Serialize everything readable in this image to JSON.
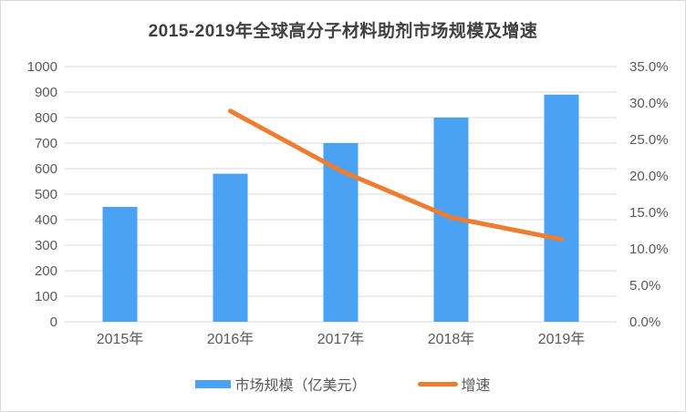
{
  "chart_data": {
    "type": "combo",
    "title": "2015-2019年全球高分子材料助剂市场规模及增速",
    "categories": [
      "2015年",
      "2016年",
      "2017年",
      "2018年",
      "2019年"
    ],
    "series": [
      {
        "name": "市场规模（亿美元）",
        "type": "bar",
        "axis": "left",
        "values": [
          450,
          580,
          700,
          800,
          890
        ]
      },
      {
        "name": "增速",
        "type": "line",
        "axis": "right",
        "values": [
          null,
          28.9,
          20.7,
          14.3,
          11.3
        ]
      }
    ],
    "axes": {
      "left": {
        "min": 0,
        "max": 1000,
        "step": 100,
        "tick_labels": [
          "0",
          "100",
          "200",
          "300",
          "400",
          "500",
          "600",
          "700",
          "800",
          "900",
          "1000"
        ]
      },
      "right": {
        "min": 0,
        "max": 35,
        "step": 5,
        "tick_labels": [
          "0.0%",
          "5.0%",
          "10.0%",
          "15.0%",
          "20.0%",
          "25.0%",
          "30.0%",
          "35.0%"
        ]
      }
    },
    "grid": "horizontal",
    "legend_position": "bottom",
    "colors": {
      "bar": "#4AA2F5",
      "line": "#ED7D31",
      "grid": "#D9D9D9",
      "tick_text": "#595959",
      "title_text": "#404040"
    }
  }
}
